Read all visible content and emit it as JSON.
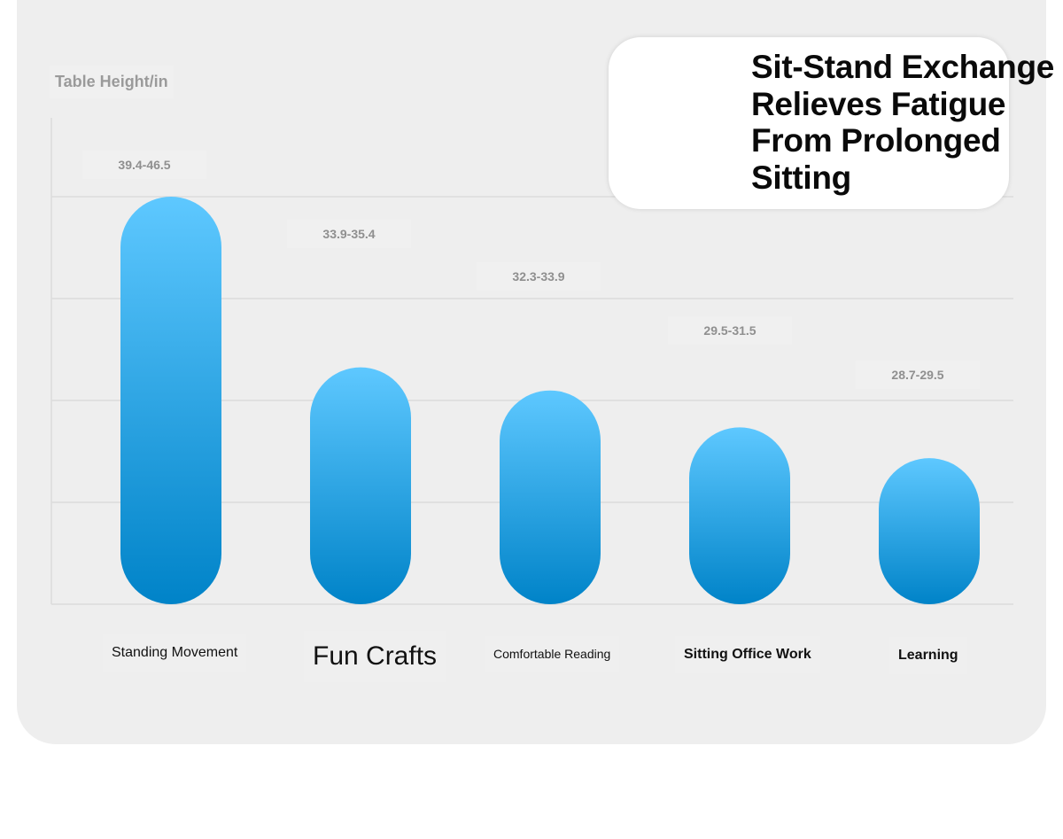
{
  "chart_data": {
    "type": "bar",
    "title": "Sit-Stand Exchange Relieves Fatigue From Prolonged Sitting",
    "ylabel": "Table Height/in",
    "xlabel": "",
    "categories": [
      "Standing Movement",
      "Fun Crafts",
      "Comfortable Reading",
      "Sitting Office Work",
      "Learning"
    ],
    "value_labels": [
      "39.4-46.5",
      "33.9-35.4",
      "32.3-33.9",
      "29.5-31.5",
      "28.7-29.5"
    ],
    "ranges": [
      [
        39.4,
        46.5
      ],
      [
        33.9,
        35.4
      ],
      [
        32.3,
        33.9
      ],
      [
        29.5,
        31.5
      ],
      [
        28.7,
        29.5
      ]
    ],
    "values": [
      46.5,
      35.4,
      33.9,
      31.5,
      29.5
    ],
    "grid": true,
    "colors": {
      "bar_top": "#5ec8ff",
      "bar_bottom": "#0083c8",
      "grid": "#dcdcdc",
      "panel": "#eeeeee"
    }
  }
}
